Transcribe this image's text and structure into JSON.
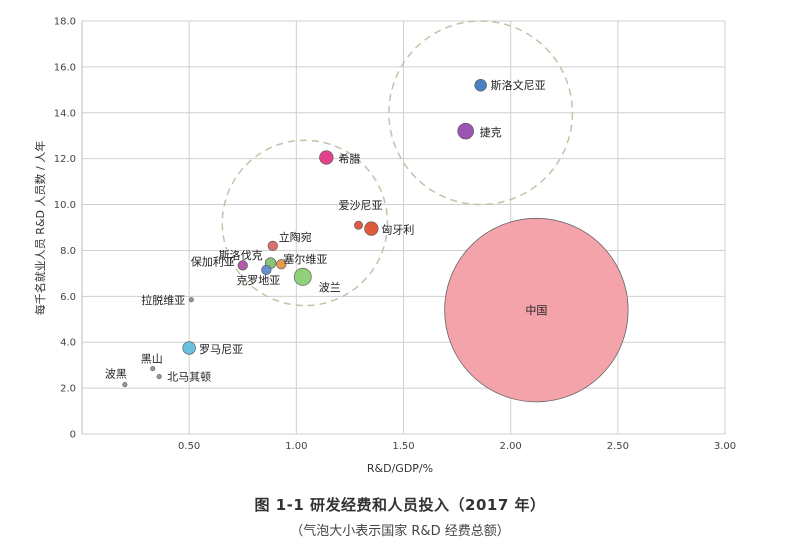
{
  "caption": {
    "title": "图 1-1  研发经费和人员投入（2017 年）",
    "subtitle": "（气泡大小表示国家 R&D 经费总额）"
  },
  "chart_data": {
    "type": "bubble",
    "xlabel": "R&D/GDP/%",
    "ylabel": "每千名就业人员 R&D 人员数 / 人年",
    "xlim": [
      0,
      3.0
    ],
    "ylim": [
      0,
      18.0
    ],
    "xticks": [
      "0.50",
      "1.00",
      "1.50",
      "2.00",
      "2.50",
      "3.00"
    ],
    "yticks": [
      "0",
      "2.0",
      "4.0",
      "6.0",
      "8.0",
      "10.0",
      "12.0",
      "14.0",
      "16.0",
      "18.0"
    ],
    "grid": true,
    "points": [
      {
        "name": "斯洛文尼亚",
        "x": 1.86,
        "y": 15.2,
        "size": 5,
        "color": "#4a7fc0"
      },
      {
        "name": "捷克",
        "x": 1.79,
        "y": 13.2,
        "size": 10,
        "color": "#9a55b5"
      },
      {
        "name": "希腊",
        "x": 1.14,
        "y": 12.05,
        "size": 7,
        "color": "#e4418d"
      },
      {
        "name": "爱沙尼亚",
        "x": 1.29,
        "y": 9.1,
        "size": 2,
        "color": "#e05a4a"
      },
      {
        "name": "匈牙利",
        "x": 1.35,
        "y": 8.95,
        "size": 7,
        "color": "#e05a3c"
      },
      {
        "name": "立陶宛",
        "x": 0.89,
        "y": 8.2,
        "size": 3,
        "color": "#e06d6d"
      },
      {
        "name": "保加利亚",
        "x": 0.75,
        "y": 7.35,
        "size": 3,
        "color": "#b05aa8"
      },
      {
        "name": "斯洛伐克",
        "x": 0.88,
        "y": 7.45,
        "size": 4,
        "color": "#8ac37c"
      },
      {
        "name": "塞尔维亚",
        "x": 0.93,
        "y": 7.4,
        "size": 3,
        "color": "#e89a4a"
      },
      {
        "name": "克罗地亚",
        "x": 0.86,
        "y": 7.15,
        "size": 3,
        "color": "#6a8fd0"
      },
      {
        "name": "波兰",
        "x": 1.03,
        "y": 6.85,
        "size": 12,
        "color": "#8fd07a"
      },
      {
        "name": "拉脱维亚",
        "x": 0.51,
        "y": 5.85,
        "size": 1,
        "color": "#999999"
      },
      {
        "name": "罗马尼亚",
        "x": 0.5,
        "y": 3.75,
        "size": 6,
        "color": "#6ac0df"
      },
      {
        "name": "黑山",
        "x": 0.33,
        "y": 2.85,
        "size": 1,
        "color": "#999999"
      },
      {
        "name": "北马其顿",
        "x": 0.36,
        "y": 2.5,
        "size": 1,
        "color": "#999999"
      },
      {
        "name": "波黑",
        "x": 0.2,
        "y": 2.15,
        "size": 1,
        "color": "#999999"
      },
      {
        "name": "中国",
        "x": 2.12,
        "y": 5.4,
        "size": 100,
        "color": "#f4a3ab"
      }
    ],
    "groups": [
      {
        "cx": 1.04,
        "cy": 9.2,
        "r": 3.6,
        "note": "group-a"
      },
      {
        "cx": 1.86,
        "cy": 14.0,
        "r": 4.0,
        "note": "group-b"
      }
    ]
  }
}
